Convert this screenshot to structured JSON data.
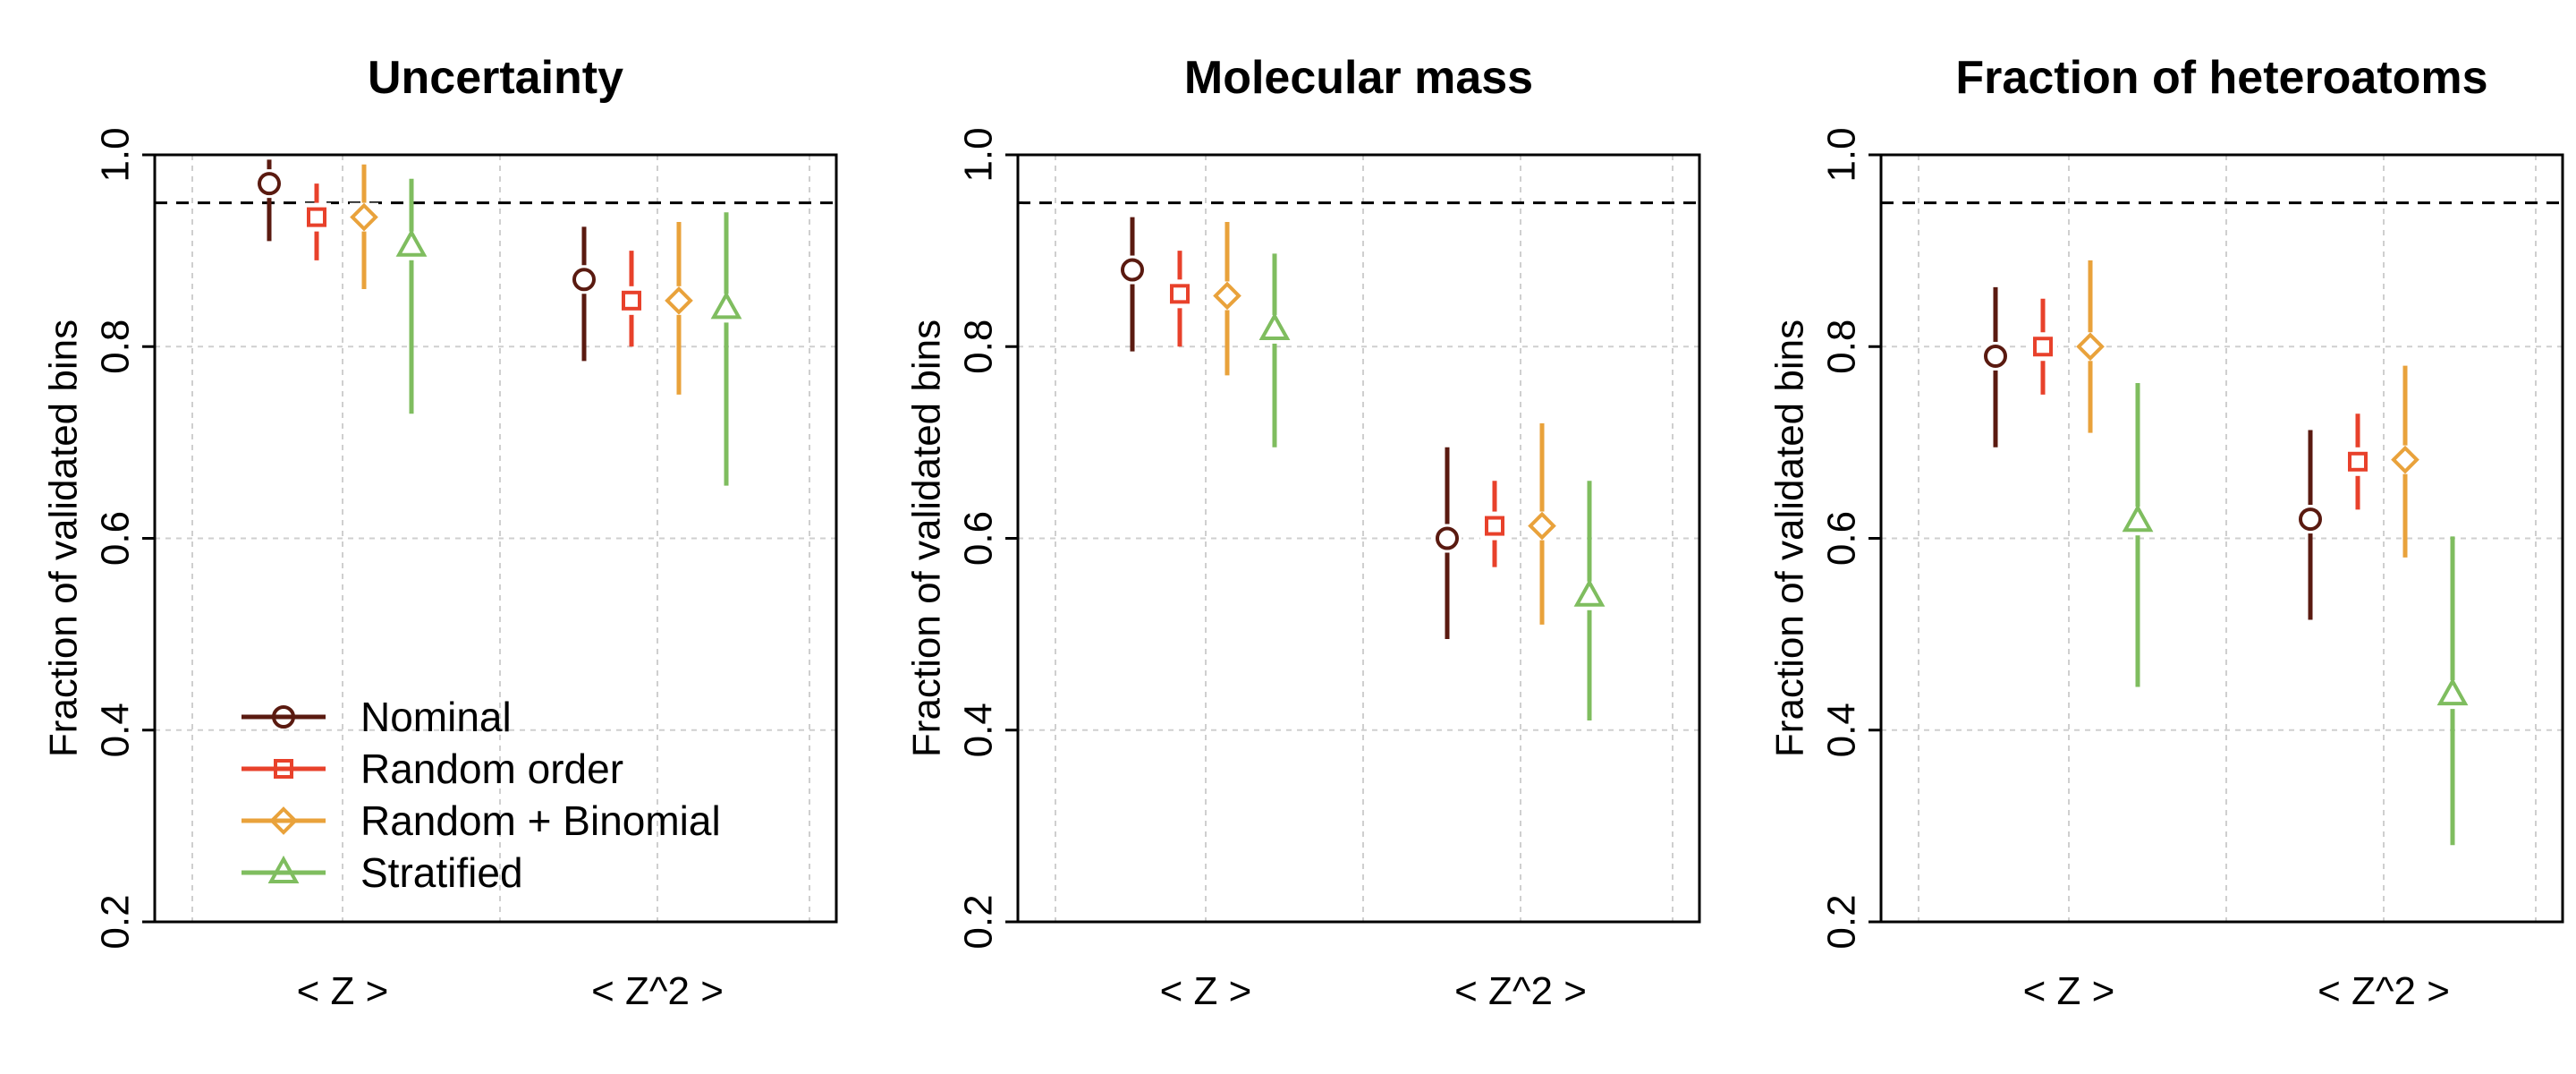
{
  "chart_data": [
    {
      "type": "scatter",
      "title": "Uncertainty",
      "xlabel": "",
      "ylabel": "Fraction of validated bins",
      "categories": [
        "< Z >",
        "< Z^2 >"
      ],
      "ylim": [
        0.2,
        1.0
      ],
      "yticks": [
        "0.2",
        "0.4",
        "0.6",
        "0.8",
        "1.0"
      ],
      "reference_line": 0.95,
      "grid": true,
      "legend": "bottom-left",
      "series": [
        {
          "name": "Nominal",
          "values": [
            0.97,
            0.87
          ],
          "lower": [
            0.91,
            0.785
          ],
          "upper": [
            0.995,
            0.925
          ]
        },
        {
          "name": "Random order",
          "values": [
            0.935,
            0.848
          ],
          "lower": [
            0.89,
            0.8
          ],
          "upper": [
            0.97,
            0.9
          ]
        },
        {
          "name": "Random + Binomial",
          "values": [
            0.935,
            0.848
          ],
          "lower": [
            0.86,
            0.75
          ],
          "upper": [
            0.99,
            0.93
          ]
        },
        {
          "name": "Stratified",
          "values": [
            0.905,
            0.84
          ],
          "lower": [
            0.73,
            0.655
          ],
          "upper": [
            0.975,
            0.94
          ]
        }
      ]
    },
    {
      "type": "scatter",
      "title": "Molecular mass",
      "xlabel": "",
      "ylabel": "Fraction of validated bins",
      "categories": [
        "< Z >",
        "< Z^2 >"
      ],
      "ylim": [
        0.2,
        1.0
      ],
      "yticks": [
        "0.2",
        "0.4",
        "0.6",
        "0.8",
        "1.0"
      ],
      "reference_line": 0.95,
      "grid": true,
      "series": [
        {
          "name": "Nominal",
          "values": [
            0.88,
            0.6
          ],
          "lower": [
            0.795,
            0.495
          ],
          "upper": [
            0.935,
            0.695
          ]
        },
        {
          "name": "Random order",
          "values": [
            0.855,
            0.613
          ],
          "lower": [
            0.8,
            0.57
          ],
          "upper": [
            0.9,
            0.66
          ]
        },
        {
          "name": "Random + Binomial",
          "values": [
            0.853,
            0.613
          ],
          "lower": [
            0.77,
            0.51
          ],
          "upper": [
            0.93,
            0.72
          ]
        },
        {
          "name": "Stratified",
          "values": [
            0.818,
            0.54
          ],
          "lower": [
            0.695,
            0.41
          ],
          "upper": [
            0.897,
            0.66
          ]
        }
      ]
    },
    {
      "type": "scatter",
      "title": "Fraction of heteroatoms",
      "xlabel": "",
      "ylabel": "Fraction of validated bins",
      "categories": [
        "< Z >",
        "< Z^2 >"
      ],
      "ylim": [
        0.2,
        1.0
      ],
      "yticks": [
        "0.2",
        "0.4",
        "0.6",
        "0.8",
        "1.0"
      ],
      "reference_line": 0.95,
      "grid": true,
      "series": [
        {
          "name": "Nominal",
          "values": [
            0.79,
            0.62
          ],
          "lower": [
            0.695,
            0.515
          ],
          "upper": [
            0.862,
            0.713
          ]
        },
        {
          "name": "Random order",
          "values": [
            0.8,
            0.68
          ],
          "lower": [
            0.75,
            0.63
          ],
          "upper": [
            0.85,
            0.73
          ]
        },
        {
          "name": "Random + Binomial",
          "values": [
            0.8,
            0.682
          ],
          "lower": [
            0.71,
            0.58
          ],
          "upper": [
            0.89,
            0.78
          ]
        },
        {
          "name": "Stratified",
          "values": [
            0.618,
            0.437
          ],
          "lower": [
            0.445,
            0.28
          ],
          "upper": [
            0.762,
            0.602
          ]
        }
      ]
    }
  ],
  "legend": {
    "entries": [
      {
        "label": "Nominal",
        "color": "#5a1a10",
        "marker": "circle"
      },
      {
        "label": "Random order",
        "color": "#e8412b",
        "marker": "square"
      },
      {
        "label": "Random + Binomial",
        "color": "#e9a23b",
        "marker": "diamond"
      },
      {
        "label": "Stratified",
        "color": "#7fbd5f",
        "marker": "triangle"
      }
    ]
  }
}
